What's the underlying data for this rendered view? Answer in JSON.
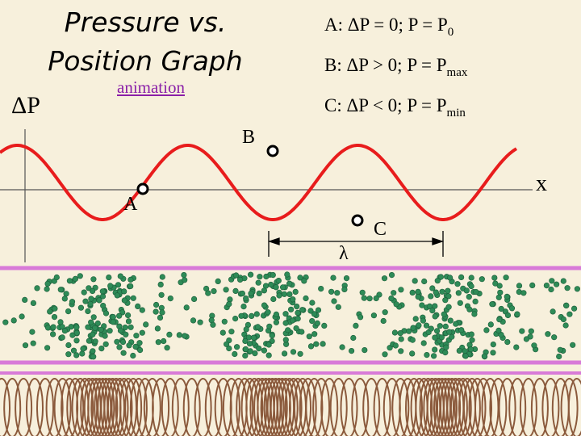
{
  "title_line1": "Pressure  vs.",
  "title_line2": "Position Graph",
  "animation_link": "animation",
  "y_axis_label": "ΔP",
  "x_axis_label": "x",
  "legend": [
    {
      "lhs": "A:  ΔP = 0;  P = P",
      "sub": "0"
    },
    {
      "lhs": "B:  ΔP > 0;  P = P",
      "sub": "max"
    },
    {
      "lhs": "C:  ΔP < 0;  P = P",
      "sub": "min"
    }
  ],
  "points": {
    "A": "A",
    "B": "B",
    "C": "C"
  },
  "wavelength_label": "λ",
  "colors": {
    "wave": "#e81c1c",
    "particle": "#2e8b57",
    "tube_border": "#d87ad8",
    "background": "#f7f0dc",
    "spring": "#8b5a3c"
  }
}
